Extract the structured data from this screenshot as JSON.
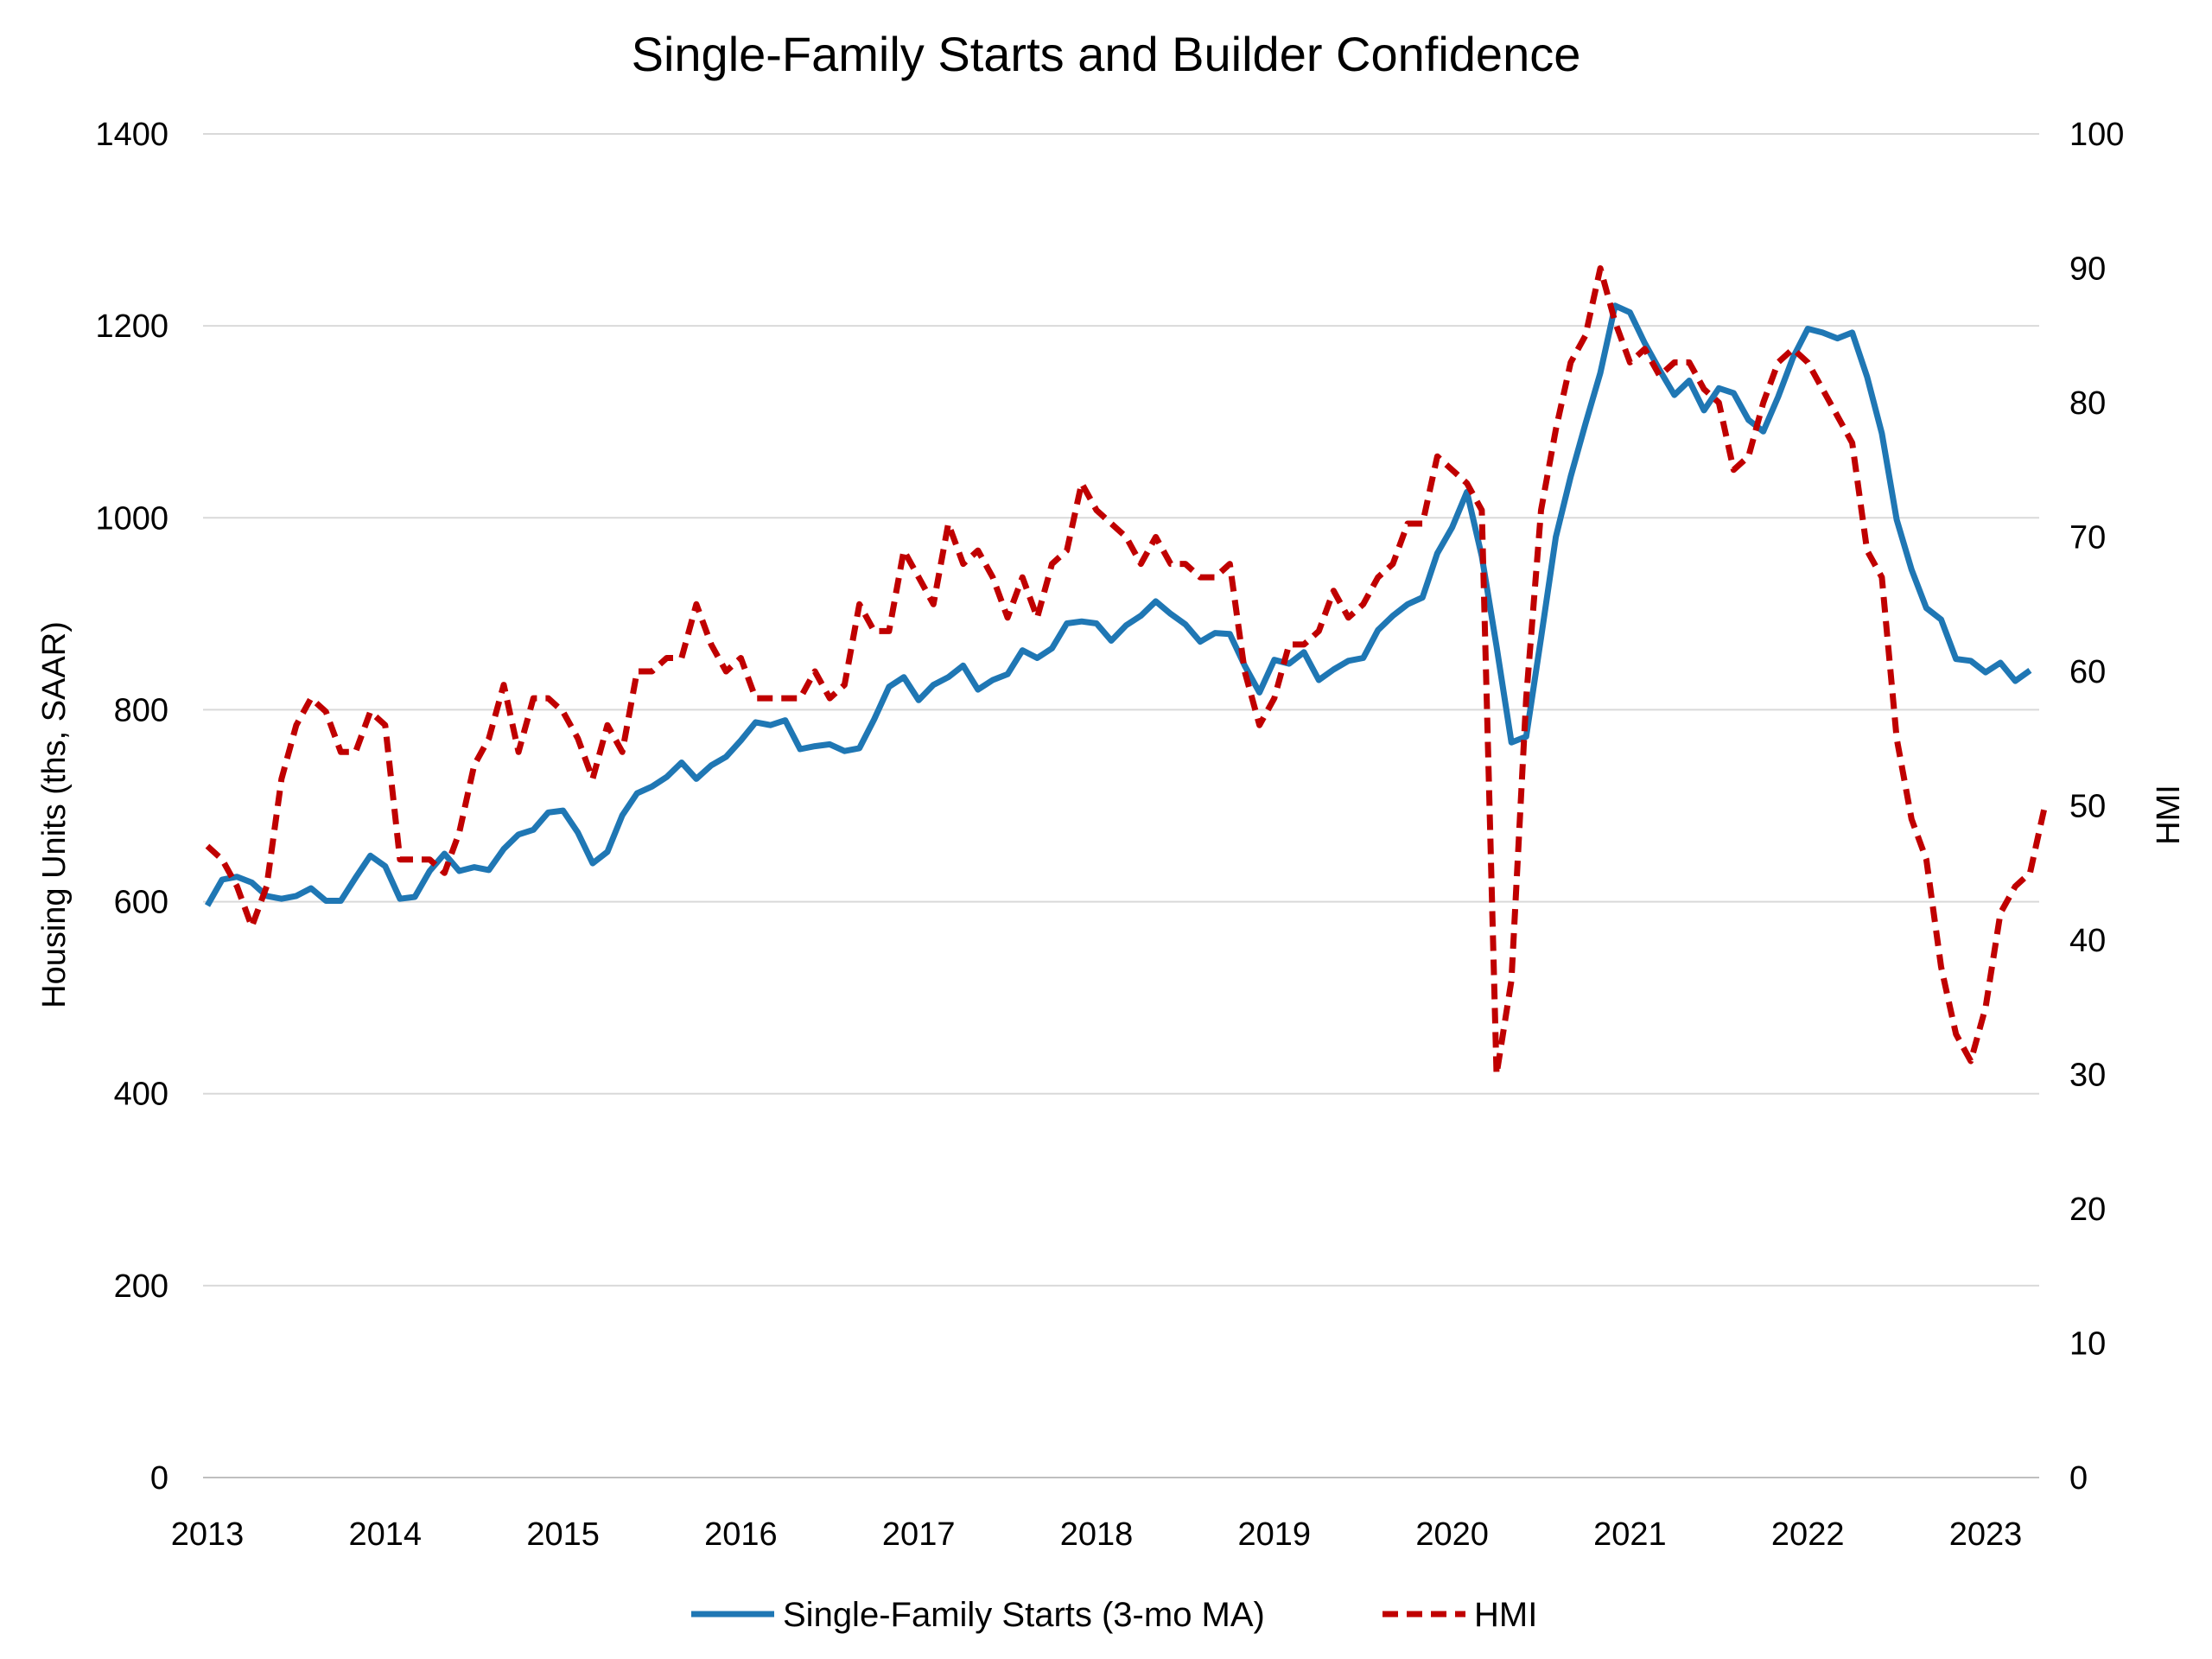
{
  "chart_data": {
    "type": "line",
    "title": "Single-Family Starts and Builder Confidence",
    "ylabel": "Housing Units (ths, SAAR)",
    "y2label": "HMI",
    "ylim": [
      0,
      1400
    ],
    "y2lim": [
      0,
      100
    ],
    "yticks": [
      "0",
      "200",
      "400",
      "600",
      "800",
      "1000",
      "1200",
      "1400"
    ],
    "y2ticks": [
      "0",
      "10",
      "20",
      "30",
      "40",
      "50",
      "60",
      "70",
      "80",
      "90",
      "100"
    ],
    "xticks": [
      "2013",
      "2014",
      "2015",
      "2016",
      "2017",
      "2018",
      "2019",
      "2020",
      "2021",
      "2022",
      "2023"
    ],
    "x_start": "2013-01",
    "grid": true,
    "legend_position": "bottom",
    "series": [
      {
        "name": "Single-Family Starts (3-mo MA)",
        "axis": "left",
        "color": "#1f77b4",
        "style": "solid",
        "values": [
          596,
          623,
          626,
          620,
          606,
          603,
          606,
          614,
          601,
          601,
          625,
          648,
          637,
          603,
          605,
          632,
          650,
          632,
          636,
          633,
          655,
          670,
          675,
          693,
          695,
          672,
          640,
          652,
          690,
          713,
          720,
          730,
          745,
          728,
          742,
          751,
          768,
          787,
          784,
          789,
          759,
          762,
          764,
          757,
          760,
          790,
          824,
          834,
          810,
          826,
          834,
          846,
          821,
          831,
          837,
          862,
          854,
          864,
          890,
          892,
          890,
          872,
          888,
          898,
          913,
          900,
          889,
          871,
          880,
          879,
          846,
          818,
          852,
          848,
          860,
          831,
          842,
          851,
          854,
          883,
          898,
          910,
          917,
          963,
          990,
          1027,
          960,
          866,
          766,
          772,
          875,
          980,
          1043,
          1098,
          1151,
          1221,
          1214,
          1182,
          1154,
          1128,
          1143,
          1112,
          1135,
          1130,
          1102,
          1090,
          1126,
          1167,
          1197,
          1193,
          1187,
          1193,
          1147,
          1088,
          998,
          946,
          906,
          894,
          853,
          851,
          839,
          849,
          830,
          841
        ]
      },
      {
        "name": "HMI",
        "axis": "right",
        "color": "#c00000",
        "style": "dashed",
        "values": [
          47,
          46,
          44,
          41,
          44,
          52,
          56,
          58,
          57,
          54,
          54,
          57,
          56,
          46,
          46,
          46,
          45,
          48,
          53,
          55,
          59,
          54,
          58,
          58,
          57,
          55,
          52,
          56,
          54,
          60,
          60,
          61,
          61,
          65,
          62,
          60,
          61,
          58,
          58,
          58,
          58,
          60,
          58,
          59,
          65,
          63,
          63,
          69,
          67,
          65,
          71,
          68,
          69,
          67,
          64,
          67,
          64,
          68,
          69,
          74,
          72,
          71,
          70,
          68,
          70,
          68,
          68,
          67,
          67,
          68,
          60,
          56,
          58,
          62,
          62,
          63,
          66,
          64,
          65,
          67,
          68,
          71,
          71,
          76,
          75,
          74,
          72,
          30,
          37,
          58,
          72,
          78,
          83,
          85,
          90,
          86,
          83,
          84,
          82,
          83,
          83,
          81,
          80,
          75,
          76,
          80,
          83,
          84,
          83,
          81,
          79,
          77,
          69,
          67,
          55,
          49,
          46,
          38,
          33,
          31,
          35,
          42,
          44,
          45,
          50
        ]
      }
    ]
  }
}
